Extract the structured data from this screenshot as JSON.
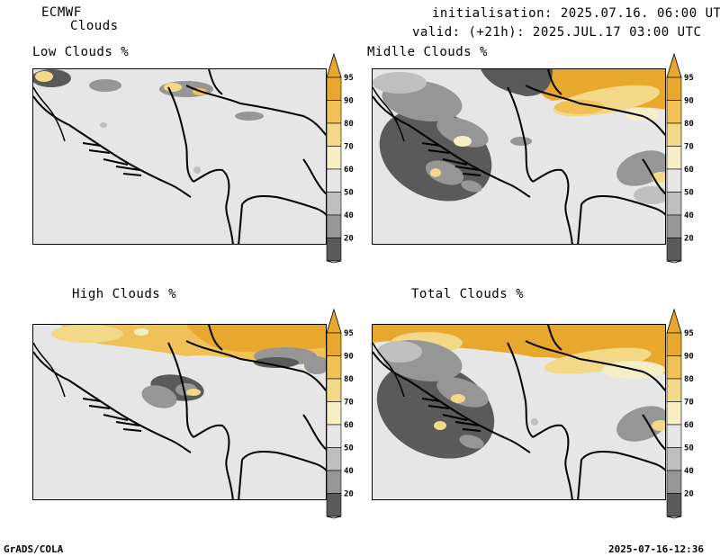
{
  "header": {
    "model": "ECMWF",
    "product": "Clouds",
    "initialisation": "initialisation: 2025.07.16. 06:00 UTC",
    "valid": "valid: (+21h): 2025.JUL.17 03:00 UTC"
  },
  "panels": [
    {
      "title": "Low Clouds %"
    },
    {
      "title": "Midlle Clouds %"
    },
    {
      "title": "High Clouds %"
    },
    {
      "title": "Total Clouds %"
    }
  ],
  "colorbar": {
    "levels": [
      "95",
      "90",
      "80",
      "70",
      "60",
      "50",
      "40",
      "20"
    ],
    "colors": {
      "c95": "#e8a82e",
      "c90": "#efc156",
      "c80": "#f3d888",
      "c70": "#f6efc6",
      "c60": "#e6e6e6",
      "c50": "#bfbfbf",
      "c40": "#969696",
      "c20": "#5a5a5a",
      "c0": "#ffffff"
    }
  },
  "footer": {
    "left": "GrADS/COLA",
    "right": "2025-07-16-12:36"
  }
}
